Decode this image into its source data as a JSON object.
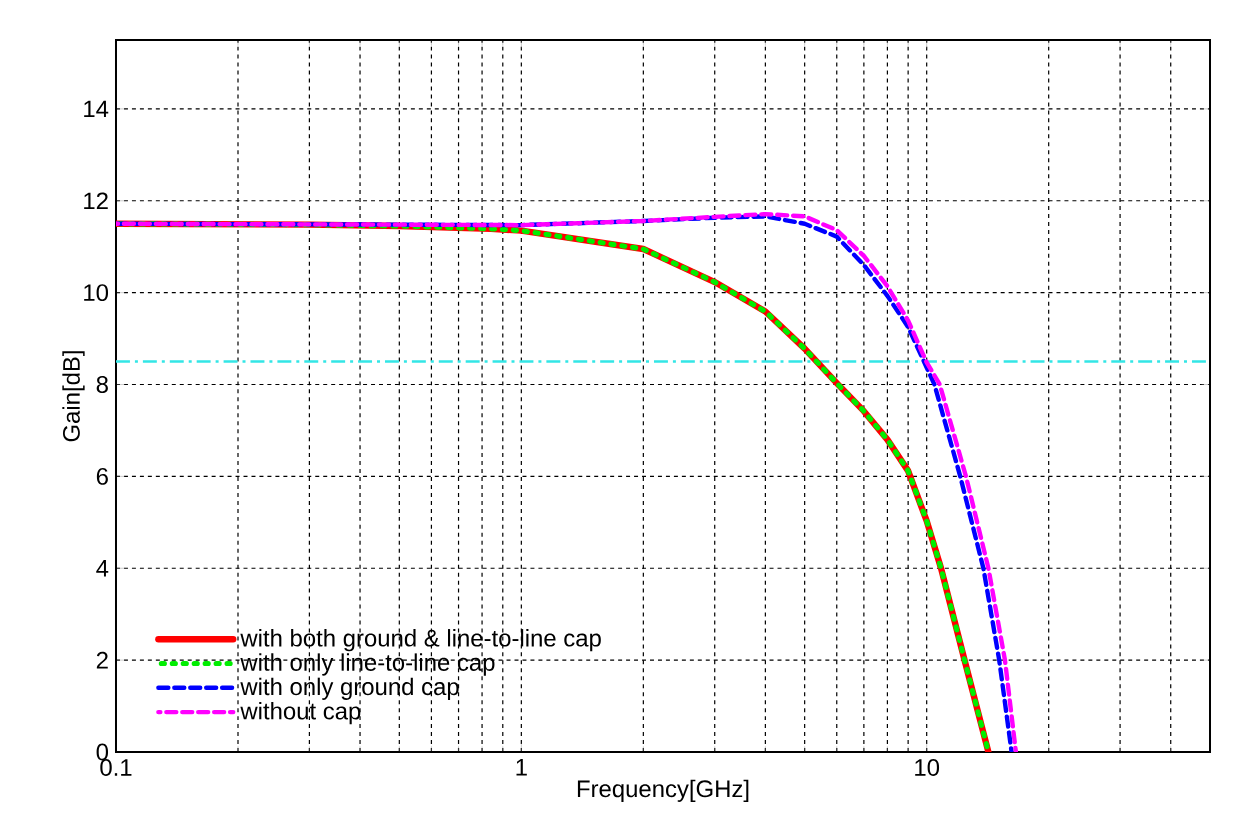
{
  "chart_data": {
    "type": "line",
    "xlabel": "Frequency[GHz]",
    "ylabel": "Gain[dB]",
    "log": "x",
    "xlim": [
      0.1,
      50
    ],
    "ylim": [
      0,
      15.5
    ],
    "xticks": [
      0.1,
      1,
      10
    ],
    "yticks": [
      0,
      2,
      4,
      6,
      8,
      10,
      12,
      14
    ],
    "grid": true,
    "legend": "bottom left",
    "ref_lines": [
      {
        "axis": "y",
        "value": 8.5,
        "color": "#33e6e6",
        "line_style": "dashdot"
      }
    ],
    "series": [
      {
        "name": "with both ground & line-to-line cap",
        "color": "#ff0000",
        "line_style": "solid",
        "x": [
          0.1,
          0.3,
          0.5,
          0.84,
          1,
          2,
          3,
          4,
          5,
          6,
          7,
          8,
          9,
          10,
          10.85,
          12.4,
          14.2
        ],
        "values": [
          11.5,
          11.48,
          11.45,
          11.39,
          11.35,
          10.95,
          10.23,
          9.59,
          8.78,
          8.03,
          7.42,
          6.8,
          6.12,
          5.03,
          4,
          2,
          0
        ]
      },
      {
        "name": "with only line-to-line cap",
        "color": "#00ee00",
        "line_style": "dotted",
        "x": [
          0.1,
          0.3,
          0.5,
          0.84,
          1,
          2,
          3,
          4,
          5,
          6,
          7,
          8,
          9,
          10,
          10.85,
          12.4,
          14.2
        ],
        "values": [
          11.5,
          11.48,
          11.45,
          11.39,
          11.35,
          10.95,
          10.23,
          9.59,
          8.78,
          8.03,
          7.42,
          6.8,
          6.12,
          5.03,
          4,
          2,
          0
        ]
      },
      {
        "name": "with only ground cap",
        "color": "#0000ff",
        "line_style": "dashed",
        "x": [
          0.1,
          0.5,
          1,
          2,
          3,
          4,
          5,
          6,
          7,
          8,
          9,
          10,
          10.45,
          12.1,
          13.8,
          15.1,
          16.2
        ],
        "values": [
          11.5,
          11.48,
          11.47,
          11.56,
          11.63,
          11.66,
          11.5,
          11.22,
          10.6,
          9.93,
          9.25,
          8.37,
          8,
          6,
          4,
          2,
          0
        ]
      },
      {
        "name": "without cap",
        "color": "#ff00ff",
        "line_style": "dashed",
        "x": [
          0.1,
          0.5,
          1,
          2,
          3,
          4,
          5,
          6,
          7,
          8,
          9,
          10,
          10.77,
          12.5,
          14.2,
          15.6,
          16.6
        ],
        "values": [
          11.5,
          11.48,
          11.47,
          11.56,
          11.65,
          11.71,
          11.66,
          11.36,
          10.8,
          10.14,
          9.39,
          8.48,
          8,
          6,
          4,
          2,
          0
        ]
      }
    ]
  }
}
